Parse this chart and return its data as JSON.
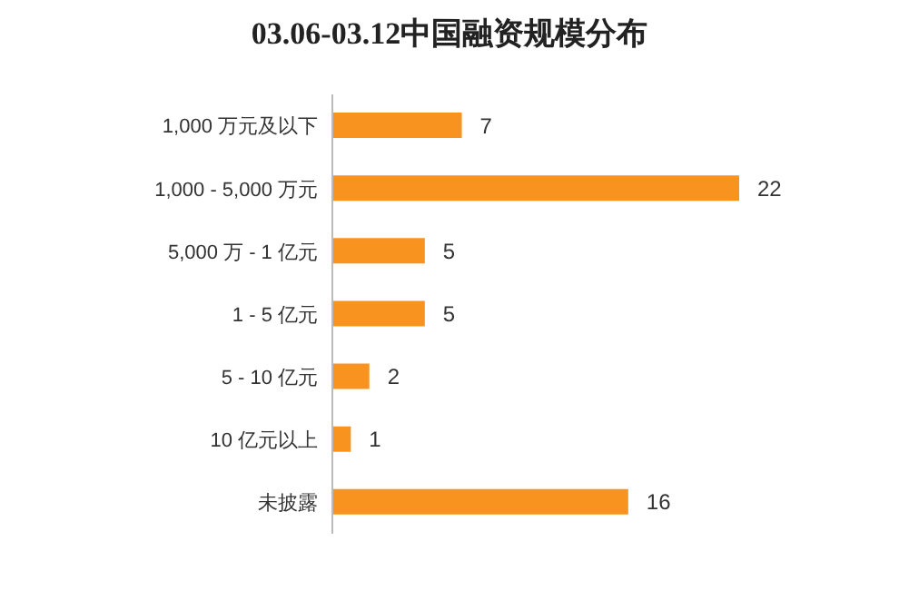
{
  "chart_data": {
    "type": "bar",
    "orientation": "horizontal",
    "title": "03.06-03.12中国融资规模分布",
    "categories": [
      "1,000 万元及以下",
      "1,000 - 5,000 万元",
      "5,000 万 - 1 亿元",
      "1 - 5 亿元",
      "5 - 10 亿元",
      "10 亿元以上",
      "未披露"
    ],
    "values": [
      7,
      22,
      5,
      5,
      2,
      1,
      16
    ],
    "color": "#f7931e",
    "data_labels": true,
    "tick_labels": "y",
    "grid": false,
    "legend": false
  }
}
